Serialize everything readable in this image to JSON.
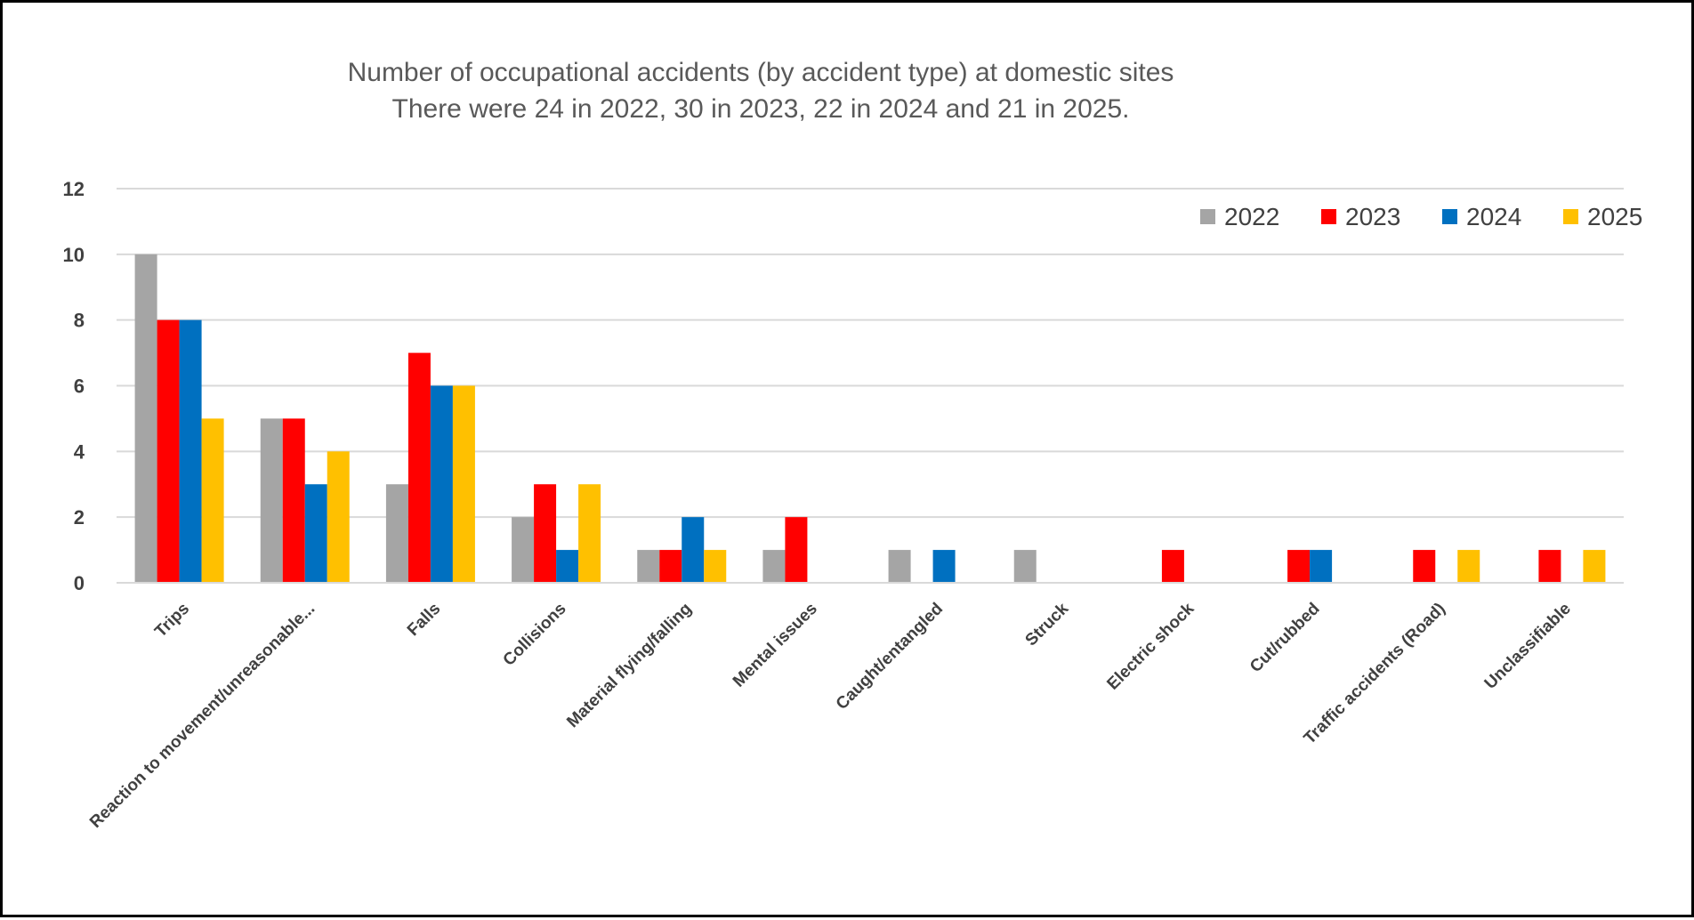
{
  "chart_data": {
    "type": "bar",
    "title": "Number of occupational accidents (by accident type) at domestic sites",
    "subtitle": "There were 24 in 2022, 30 in 2023, 22 in 2024 and 21 in 2025.",
    "xlabel": "",
    "ylabel": "",
    "ylim": [
      0,
      12
    ],
    "yticks": [
      "0",
      "2",
      "4",
      "6",
      "8",
      "10",
      "12"
    ],
    "grid": true,
    "legend_position": "top-right",
    "categories": [
      "Trips",
      "Reaction to movement/unreasonable...",
      "Falls",
      "Collisions",
      "Material flying/falling",
      "Mental issues",
      "Caught/entangled",
      "Struck",
      "Electric shock",
      "Cut/rubbed",
      "Traffic accidents (Road)",
      "Unclassifiable"
    ],
    "series": [
      {
        "name": "2022",
        "color": "#A5A5A5",
        "values": [
          10,
          5,
          3,
          2,
          1,
          1,
          1,
          1,
          0,
          0,
          0,
          0
        ]
      },
      {
        "name": "2023",
        "color": "#FF0000",
        "values": [
          8,
          5,
          7,
          3,
          1,
          2,
          0,
          0,
          1,
          1,
          1,
          1
        ]
      },
      {
        "name": "2024",
        "color": "#0070C0",
        "values": [
          8,
          3,
          6,
          1,
          2,
          0,
          1,
          0,
          0,
          1,
          0,
          0
        ]
      },
      {
        "name": "2025",
        "color": "#FFC000",
        "values": [
          5,
          4,
          6,
          3,
          1,
          0,
          0,
          0,
          0,
          0,
          1,
          1
        ]
      }
    ]
  }
}
